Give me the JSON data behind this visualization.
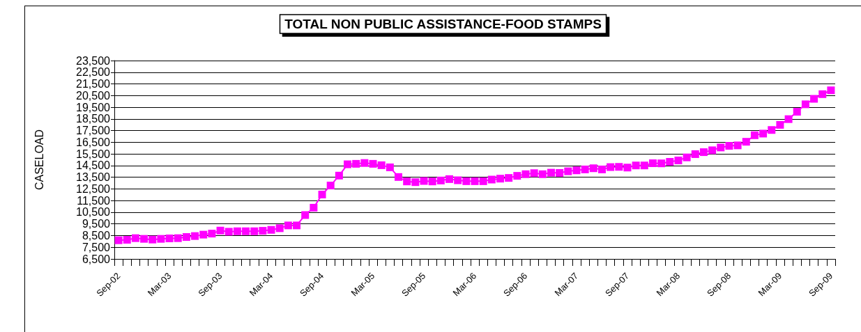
{
  "chart_data": {
    "type": "line",
    "title": "TOTAL NON PUBLIC ASSISTANCE-FOOD STAMPS",
    "ylabel": "CASELOAD",
    "categories": [
      "Sep-02",
      null,
      null,
      null,
      null,
      null,
      "Mar-03",
      null,
      null,
      null,
      null,
      null,
      "Sep-03",
      null,
      null,
      null,
      null,
      null,
      "Mar-04",
      null,
      null,
      null,
      null,
      null,
      "Sep-04",
      null,
      null,
      null,
      null,
      null,
      "Mar-05",
      null,
      null,
      null,
      null,
      null,
      "Sep-05",
      null,
      null,
      null,
      null,
      null,
      "Mar-06",
      null,
      null,
      null,
      null,
      null,
      "Sep-06",
      null,
      null,
      null,
      null,
      null,
      "Mar-07",
      null,
      null,
      null,
      null,
      null,
      "Sep-07",
      null,
      null,
      null,
      null,
      null,
      "Mar-08",
      null,
      null,
      null,
      null,
      null,
      "Sep-08",
      null,
      null,
      null,
      null,
      null,
      "Mar-09",
      null,
      null,
      null,
      null,
      null,
      "Sep-09"
    ],
    "series": [
      {
        "color": "#ff00ff",
        "values": [
          8100,
          8140,
          8280,
          8220,
          8160,
          8220,
          8260,
          8280,
          8380,
          8460,
          8580,
          8670,
          8930,
          8830,
          8870,
          8870,
          8870,
          8910,
          8990,
          9130,
          9370,
          9370,
          10260,
          10890,
          12020,
          12790,
          13640,
          14610,
          14650,
          14720,
          14650,
          14530,
          14350,
          13520,
          13140,
          13080,
          13180,
          13140,
          13220,
          13340,
          13240,
          13160,
          13160,
          13160,
          13300,
          13380,
          13440,
          13620,
          13760,
          13850,
          13760,
          13890,
          13870,
          14010,
          14090,
          14170,
          14270,
          14170,
          14370,
          14390,
          14330,
          14510,
          14510,
          14700,
          14690,
          14820,
          14940,
          15200,
          15480,
          15650,
          15810,
          16050,
          16190,
          16230,
          16540,
          17100,
          17240,
          17550,
          17990,
          18480,
          19110,
          19750,
          20220,
          20620,
          20950
        ]
      }
    ],
    "ylim": [
      6500,
      23500
    ],
    "yticks": [
      {
        "value": 6500,
        "label": "6,500"
      },
      {
        "value": 7500,
        "label": "7,500"
      },
      {
        "value": 8500,
        "label": "8,500"
      },
      {
        "value": 9500,
        "label": "9,500"
      },
      {
        "value": 10500,
        "label": "10,500"
      },
      {
        "value": 11500,
        "label": "11,500"
      },
      {
        "value": 12500,
        "label": "12,500"
      },
      {
        "value": 13500,
        "label": "13,500"
      },
      {
        "value": 14500,
        "label": "14,500"
      },
      {
        "value": 15500,
        "label": "15,500"
      },
      {
        "value": 16500,
        "label": "16,500"
      },
      {
        "value": 17500,
        "label": "17,500"
      },
      {
        "value": 18500,
        "label": "18,500"
      },
      {
        "value": 19500,
        "label": "19,500"
      },
      {
        "value": 20500,
        "label": "20,500"
      },
      {
        "value": 21500,
        "label": "21,500"
      },
      {
        "value": 22500,
        "label": "22,500"
      },
      {
        "value": 23500,
        "label": "23,500"
      }
    ],
    "grid": "y",
    "marker": "square",
    "line_style": "solid"
  }
}
